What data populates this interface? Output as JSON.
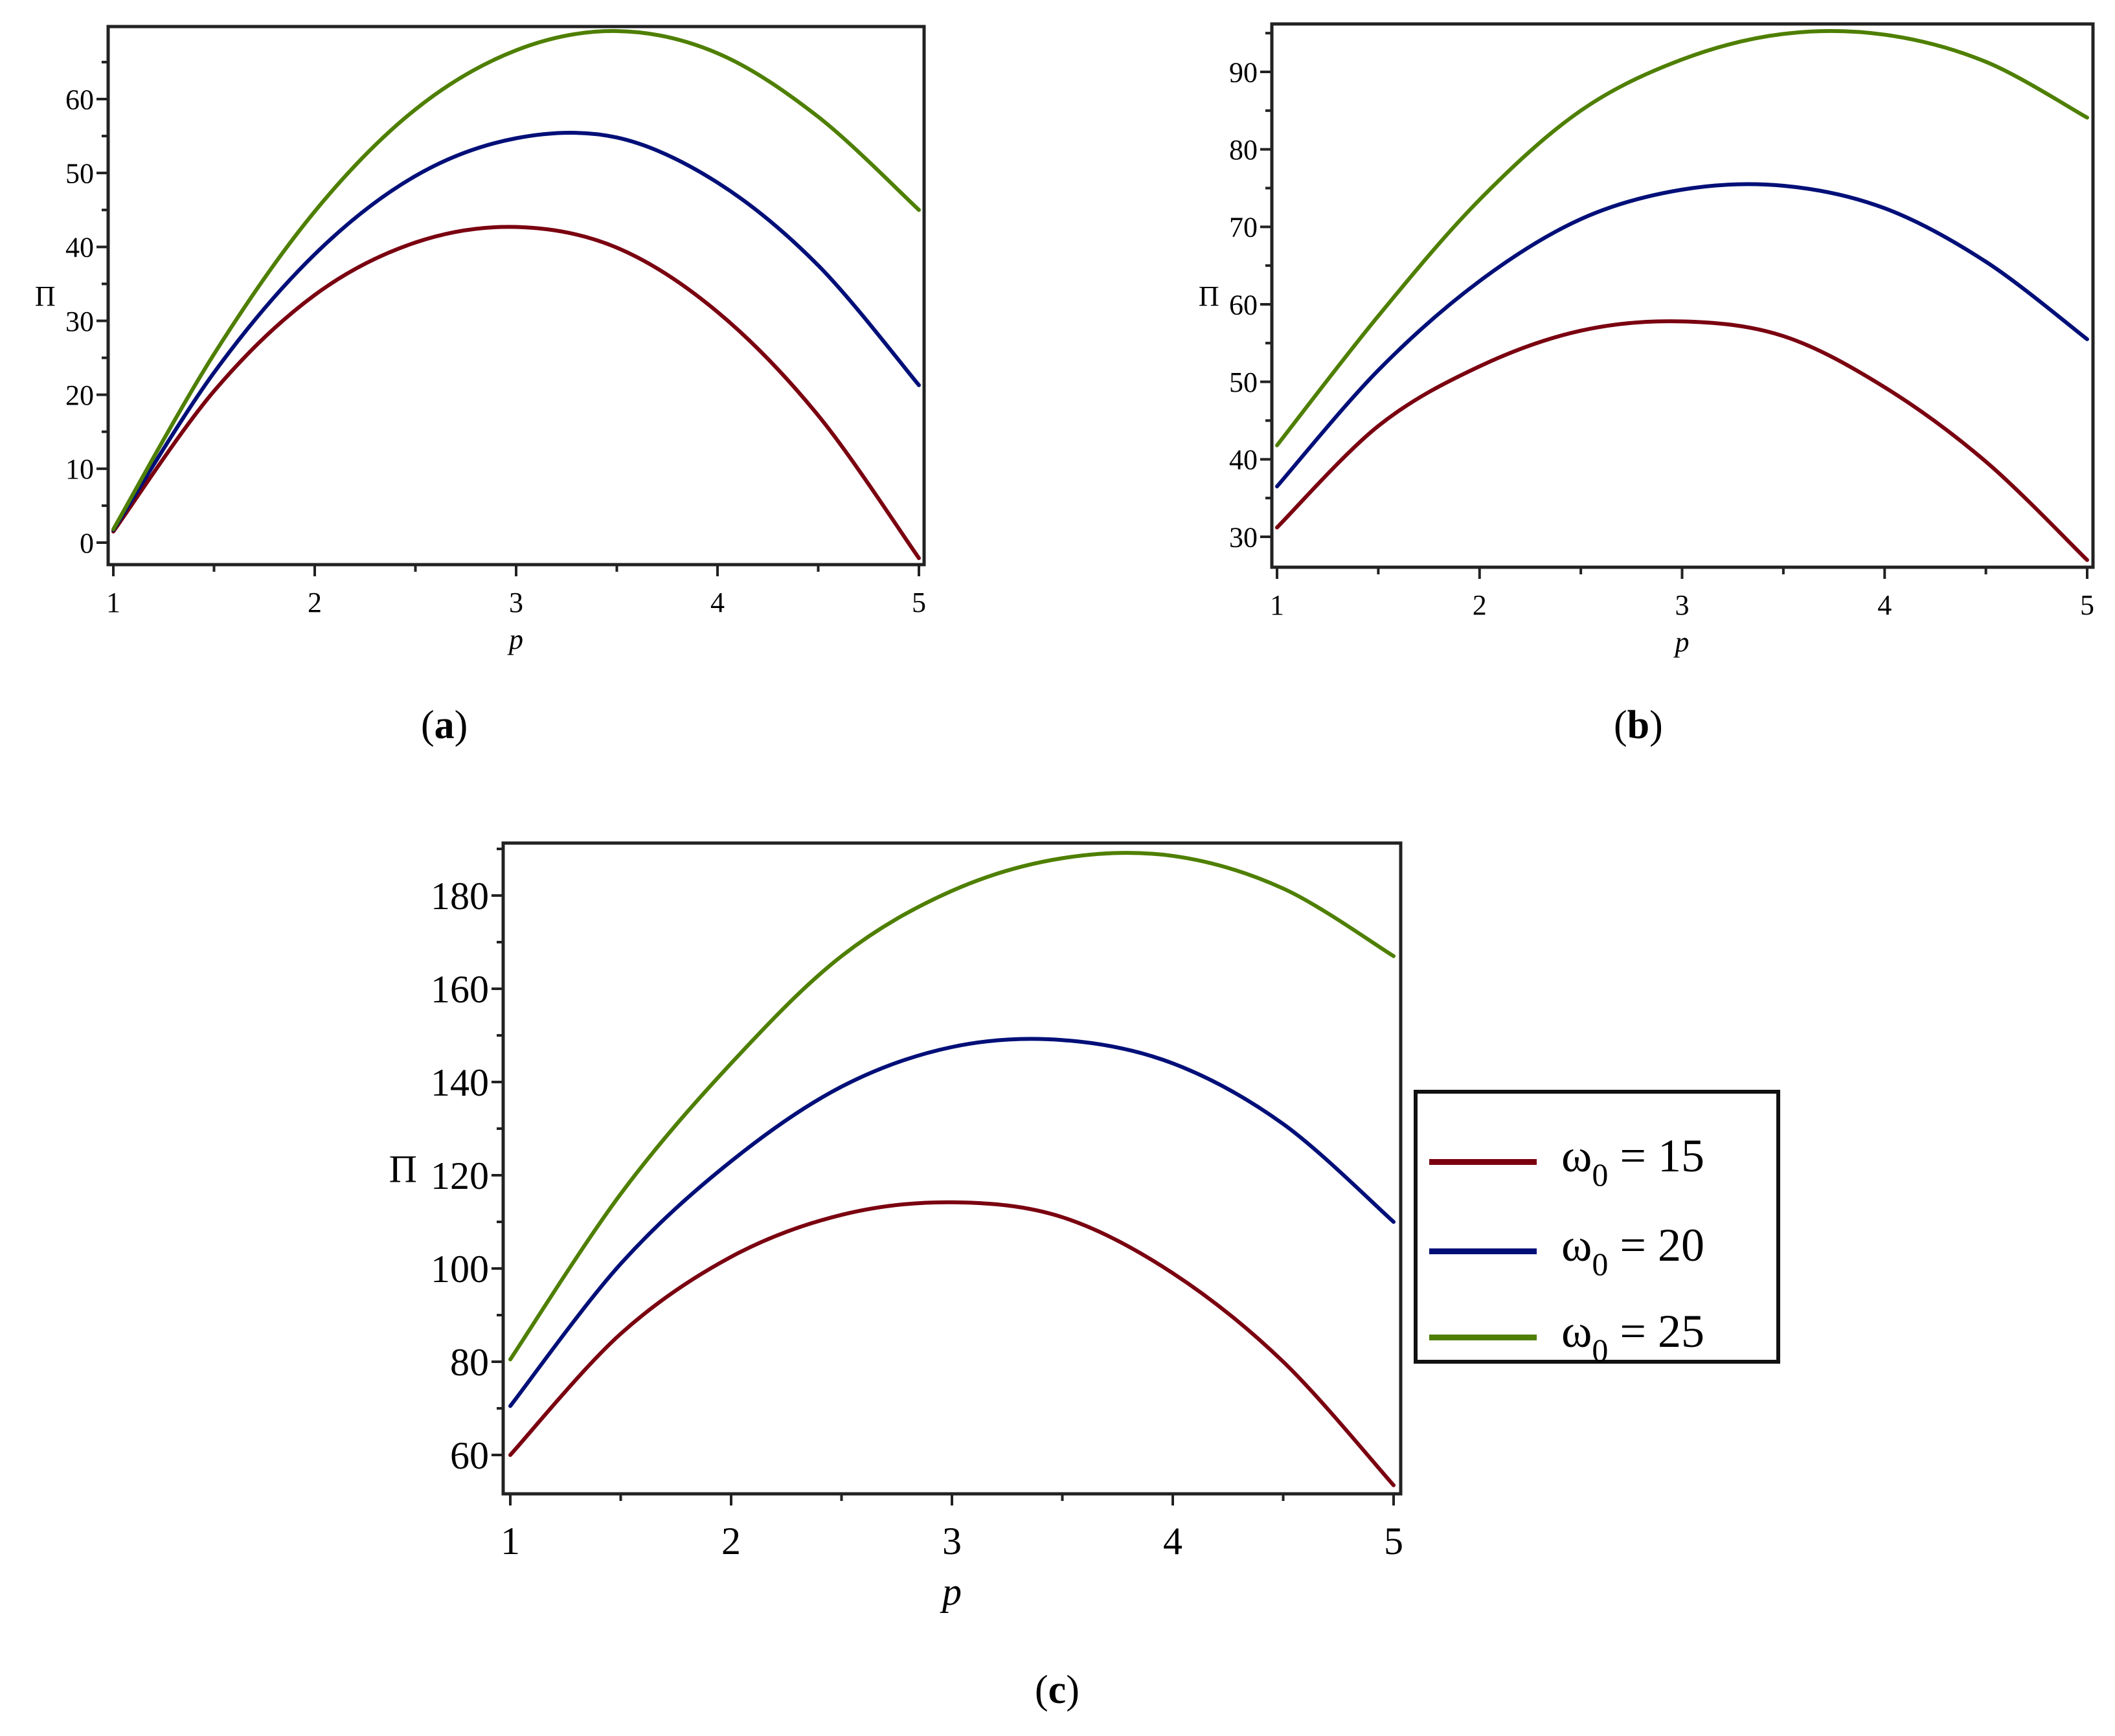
{
  "figure": {
    "captions": [
      "a",
      "b",
      "c"
    ]
  },
  "legend": {
    "items": [
      {
        "symbol": "ω",
        "subscript": "0",
        "equals": "=",
        "value": "15",
        "label": "ω0 = 15",
        "color": "#7a0010"
      },
      {
        "symbol": "ω",
        "subscript": "0",
        "equals": "=",
        "value": "20",
        "label": "ω0 = 20",
        "color": "#000f78"
      },
      {
        "symbol": "ω",
        "subscript": "0",
        "equals": "=",
        "value": "25",
        "label": "ω0 = 25",
        "color": "#4e7f00"
      }
    ]
  },
  "chart_data": [
    {
      "panel": "a",
      "type": "line",
      "title": "",
      "xlabel": "p",
      "ylabel": "Π",
      "xlim": [
        1,
        5
      ],
      "ylim": [
        -2.5,
        70
      ],
      "xticks": [
        1,
        2,
        3,
        4,
        5
      ],
      "yticks": [
        0,
        10,
        20,
        30,
        40,
        50,
        60
      ],
      "grid": false,
      "legend": "none",
      "x": [
        1.0,
        1.5,
        2.0,
        2.5,
        3.0,
        3.5,
        4.0,
        4.5,
        5.0
      ],
      "series": [
        {
          "name": "ω0 = 15",
          "color": "#7a0010",
          "values": [
            1.5,
            20.5,
            33.5,
            40.6,
            42.7,
            39.9,
            31.2,
            17.2,
            -2.1
          ]
        },
        {
          "name": "ω0 = 20",
          "color": "#000f78",
          "values": [
            1.7,
            23.0,
            39.0,
            49.6,
            54.7,
            54.8,
            48.7,
            37.5,
            21.3
          ]
        },
        {
          "name": "ω0 = 25",
          "color": "#4e7f00",
          "values": [
            1.8,
            25.5,
            44.8,
            58.6,
            66.6,
            69.2,
            66.2,
            57.6,
            45.0
          ]
        }
      ]
    },
    {
      "panel": "b",
      "type": "line",
      "title": "",
      "xlabel": "p",
      "ylabel": "Π",
      "xlim": [
        1,
        5
      ],
      "ylim": [
        26,
        96
      ],
      "xticks": [
        1,
        2,
        3,
        4,
        5
      ],
      "yticks": [
        30,
        40,
        50,
        60,
        70,
        80,
        90
      ],
      "grid": false,
      "legend": "none",
      "x": [
        1.0,
        1.5,
        2.0,
        2.5,
        3.0,
        3.5,
        4.0,
        4.5,
        5.0
      ],
      "series": [
        {
          "name": "ω0 = 15",
          "color": "#7a0010",
          "values": [
            31.2,
            44.3,
            52.0,
            56.6,
            57.8,
            55.9,
            49.3,
            39.7,
            27.0
          ]
        },
        {
          "name": "ω0 = 20",
          "color": "#000f78",
          "values": [
            36.5,
            51.5,
            63.0,
            71.0,
            74.8,
            75.3,
            72.4,
            65.5,
            55.5
          ]
        },
        {
          "name": "ω0 = 25",
          "color": "#4e7f00",
          "values": [
            41.8,
            58.5,
            73.5,
            85.0,
            91.6,
            94.9,
            94.8,
            91.3,
            84.1
          ]
        }
      ]
    },
    {
      "panel": "c",
      "type": "line",
      "title": "",
      "xlabel": "p",
      "ylabel": "Π",
      "xlim": [
        1,
        5
      ],
      "ylim": [
        51,
        190
      ],
      "xticks": [
        1,
        2,
        3,
        4,
        5
      ],
      "yticks": [
        60,
        80,
        100,
        120,
        140,
        160,
        180
      ],
      "grid": false,
      "legend": "right",
      "x": [
        1.0,
        1.5,
        2.0,
        2.5,
        3.0,
        3.5,
        4.0,
        4.5,
        5.0
      ],
      "series": [
        {
          "name": "ω0 = 15",
          "color": "#7a0010",
          "values": [
            60.0,
            86.0,
            102.5,
            111.5,
            114.2,
            111.0,
            99.0,
            80.0,
            53.5
          ]
        },
        {
          "name": "ω0 = 20",
          "color": "#000f78",
          "values": [
            70.5,
            101.0,
            123.0,
            139.0,
            147.5,
            149.0,
            144.0,
            131.0,
            110.0
          ]
        },
        {
          "name": "ω0 = 25",
          "color": "#4e7f00",
          "values": [
            80.5,
            116.0,
            144.0,
            167.0,
            181.0,
            188.0,
            188.5,
            181.5,
            167.0
          ]
        }
      ]
    }
  ],
  "panels_layout": [
    {
      "frame": [
        167,
        41,
        1427,
        872
      ],
      "x_map": [
        175,
        1419
      ],
      "y_map": [
        [
          0,
          838
        ],
        [
          60,
          153
        ]
      ],
      "tick_font": 44,
      "minor_y": 5
    },
    {
      "frame": [
        1964,
        37,
        3232,
        876
      ],
      "x_map": [
        1972,
        3223
      ],
      "y_map": [
        [
          30,
          829
        ],
        [
          90,
          111
        ]
      ],
      "tick_font": 44,
      "minor_y": 5
    },
    {
      "frame": [
        777,
        1302,
        2163,
        2307
      ],
      "x_map": [
        788,
        2152
      ],
      "y_map": [
        [
          60,
          2247
        ],
        [
          180,
          1383
        ]
      ],
      "tick_font": 60,
      "minor_y": 10
    }
  ]
}
